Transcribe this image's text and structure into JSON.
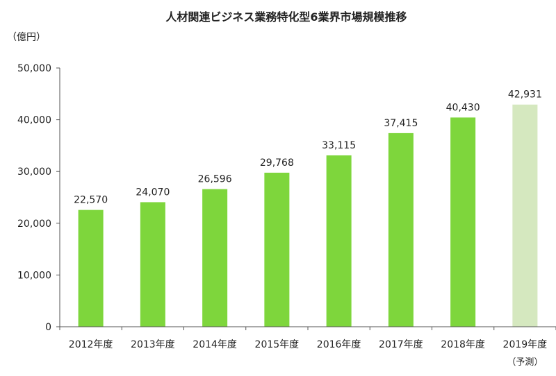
{
  "chart_data": {
    "type": "bar",
    "title": "人材関連ビジネス業務特化型6業界市場規模推移",
    "unit": "（億円）",
    "categories": [
      "2012年度",
      "2013年度",
      "2014年度",
      "2015年度",
      "2016年度",
      "2017年度",
      "2018年度",
      "2019年度"
    ],
    "values": [
      22570,
      24070,
      26596,
      29768,
      33115,
      37415,
      40430,
      42931
    ],
    "value_labels": [
      "22,570",
      "24,070",
      "26,596",
      "29,768",
      "33,115",
      "37,415",
      "40,430",
      "42,931"
    ],
    "forecast_note": "（予測）",
    "forecast_index": 7,
    "ylim": [
      0,
      50000
    ],
    "yticks": [
      0,
      10000,
      20000,
      30000,
      40000,
      50000
    ],
    "ytick_labels": [
      "0",
      "10,000",
      "20,000",
      "30,000",
      "40,000",
      "50,000"
    ],
    "grid": false,
    "colors": {
      "bar": "#7ed63c",
      "forecast_bar": "#d5e8bf",
      "axis": "#555555"
    }
  }
}
